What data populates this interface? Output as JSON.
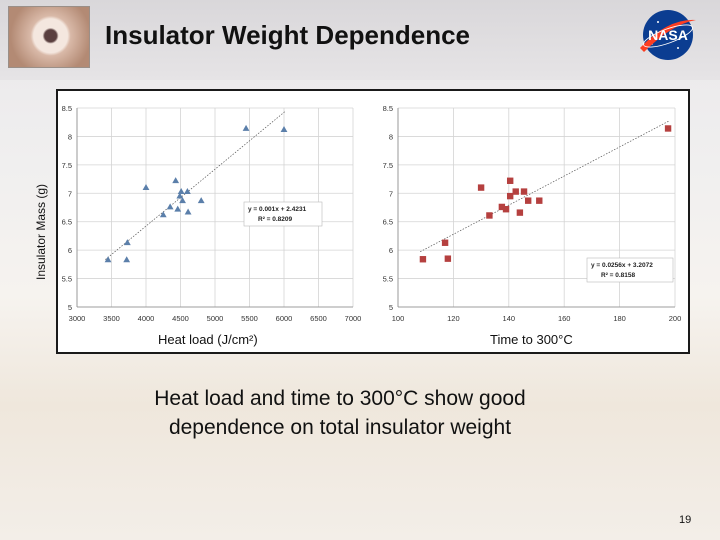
{
  "slide": {
    "title": "Insulator Weight Dependence",
    "caption_line1": "Heat load and time to 300°C show good",
    "caption_line2": "dependence on total insulator weight",
    "page_number": "19",
    "logo_text": "NASA"
  },
  "chart_data": [
    {
      "type": "scatter",
      "ylabel": "Insulator Mass (g)",
      "xlabel": "Heat load (J/cm²)",
      "xlim": [
        3000,
        7000
      ],
      "ylim": [
        5,
        8.5
      ],
      "xticks": [
        "3000",
        "3500",
        "4000",
        "4500",
        "5000",
        "5500",
        "6000",
        "6500",
        "7000"
      ],
      "yticks": [
        "5",
        "5.5",
        "6",
        "6.5",
        "7",
        "7.5",
        "8",
        "8.5"
      ],
      "marker": "triangle",
      "color": "#5b7faa",
      "grid": true,
      "points": [
        {
          "x": 3450,
          "y": 5.83
        },
        {
          "x": 3720,
          "y": 5.83
        },
        {
          "x": 3730,
          "y": 6.13
        },
        {
          "x": 4000,
          "y": 7.1
        },
        {
          "x": 4250,
          "y": 6.62
        },
        {
          "x": 4350,
          "y": 6.76
        },
        {
          "x": 4430,
          "y": 7.22
        },
        {
          "x": 4460,
          "y": 6.72
        },
        {
          "x": 4490,
          "y": 6.95
        },
        {
          "x": 4510,
          "y": 7.03
        },
        {
          "x": 4530,
          "y": 6.87
        },
        {
          "x": 4600,
          "y": 7.03
        },
        {
          "x": 4610,
          "y": 6.67
        },
        {
          "x": 4800,
          "y": 6.87
        },
        {
          "x": 5450,
          "y": 8.14
        },
        {
          "x": 6000,
          "y": 8.12
        }
      ],
      "trendline": {
        "slope": 0.001,
        "intercept": 2.4231
      },
      "annotation_line1": "y = 0.001x + 2.4231",
      "annotation_line2": "R² = 0.8209"
    },
    {
      "type": "scatter",
      "xlabel": "Time to 300°C",
      "xlim": [
        100,
        200
      ],
      "ylim": [
        5,
        8.5
      ],
      "xticks": [
        "100",
        "120",
        "140",
        "160",
        "180",
        "200"
      ],
      "yticks": [
        "5",
        "5.5",
        "6",
        "6.5",
        "7",
        "7.5",
        "8",
        "8.5"
      ],
      "marker": "square",
      "color": "#b5403f",
      "grid": true,
      "points": [
        {
          "x": 109,
          "y": 5.84
        },
        {
          "x": 117,
          "y": 6.13
        },
        {
          "x": 118,
          "y": 5.85
        },
        {
          "x": 130,
          "y": 7.1
        },
        {
          "x": 133,
          "y": 6.61
        },
        {
          "x": 137.5,
          "y": 6.76
        },
        {
          "x": 139,
          "y": 6.72
        },
        {
          "x": 140.5,
          "y": 7.22
        },
        {
          "x": 140.5,
          "y": 6.95
        },
        {
          "x": 142.5,
          "y": 7.03
        },
        {
          "x": 144,
          "y": 6.66
        },
        {
          "x": 145.5,
          "y": 7.03
        },
        {
          "x": 147,
          "y": 6.87
        },
        {
          "x": 151,
          "y": 6.87
        },
        {
          "x": 197.5,
          "y": 8.14
        }
      ],
      "trendline": {
        "slope": 0.0256,
        "intercept": 3.2072
      },
      "annotation_line1": "y = 0.0256x + 3.2072",
      "annotation_line2": "R² = 0.8158"
    }
  ]
}
